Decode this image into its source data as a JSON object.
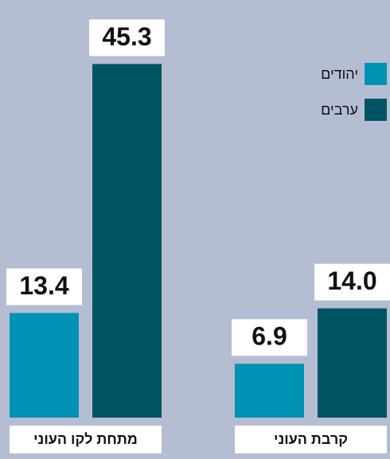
{
  "chart_data": {
    "type": "bar",
    "categories": [
      "מתחת לקו העוני",
      "קרבת העוני"
    ],
    "series": [
      {
        "name": "יהודים",
        "color": "#0092b4",
        "values": [
          13.4,
          6.9
        ],
        "value_labels": [
          "13.4",
          "6.9"
        ]
      },
      {
        "name": "ערבים",
        "color": "#005463",
        "values": [
          45.3,
          14.0
        ],
        "value_labels": [
          "45.3",
          "14.0"
        ]
      }
    ],
    "ylim": [
      0,
      53.5
    ]
  }
}
